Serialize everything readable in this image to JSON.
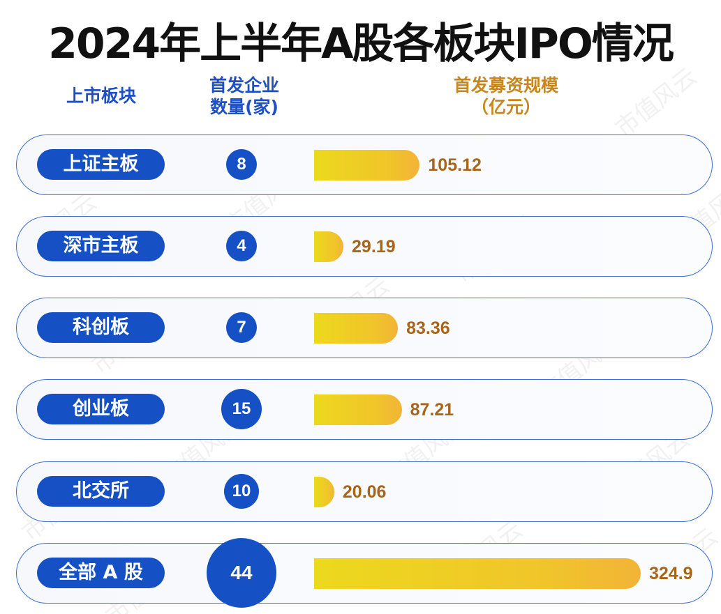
{
  "title": "2024年上半年A股各板块IPO情况",
  "headers": {
    "board": "上市板块",
    "count": "首发企业\n数量(家)",
    "amount": "首发募资规模\n（亿元）"
  },
  "watermark": "市值风云",
  "colors": {
    "pill": "#1550c4",
    "bar_start": "#ecd91d",
    "bar_end": "#f2b437",
    "value_text": "#a8651a",
    "title": "#111111"
  },
  "chart_data": {
    "type": "bar",
    "title": "2024年上半年A股各板块IPO情况",
    "categories": [
      "上证主板",
      "深市主板",
      "科创板",
      "创业板",
      "北交所",
      "全部 A 股"
    ],
    "series": [
      {
        "name": "首发企业数量(家)",
        "values": [
          8,
          4,
          7,
          15,
          10,
          44
        ]
      },
      {
        "name": "首发募资规模（亿元）",
        "values": [
          105.12,
          29.19,
          83.36,
          87.21,
          20.06,
          324.9
        ]
      }
    ],
    "value_labels": [
      "105.12",
      "29.19",
      "83.36",
      "87.21",
      "20.06",
      "324.9"
    ],
    "count_labels": [
      "8",
      "4",
      "7",
      "15",
      "10",
      "44"
    ],
    "orientation": "horizontal",
    "grid": false
  }
}
